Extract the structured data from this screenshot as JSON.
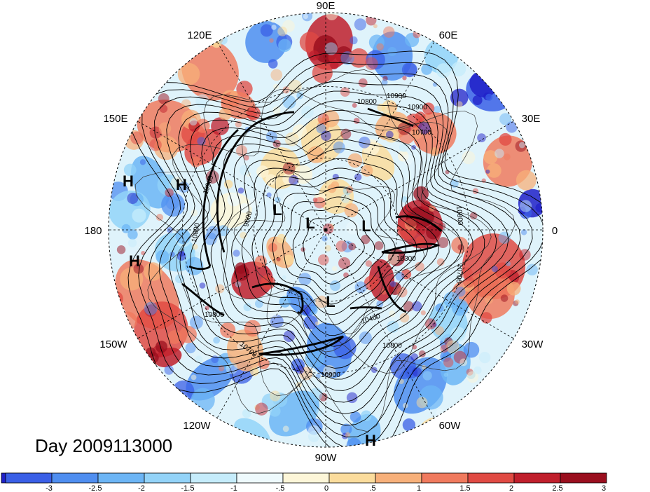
{
  "title": "Day 2009113000",
  "longitude_labels": [
    "90E",
    "60E",
    "30E",
    "0",
    "30W",
    "60W",
    "90W",
    "120W",
    "150W",
    "180",
    "150E",
    "120E"
  ],
  "pressure_centers": [
    {
      "label": "H",
      "name": "high-center"
    },
    {
      "label": "H",
      "name": "high-center"
    },
    {
      "label": "H",
      "name": "high-center"
    },
    {
      "label": "H",
      "name": "high-center"
    },
    {
      "label": "L",
      "name": "low-center"
    },
    {
      "label": "L",
      "name": "low-center"
    },
    {
      "label": "L",
      "name": "low-center"
    },
    {
      "label": "L",
      "name": "low-center"
    }
  ],
  "contour_labels": [
    "10900",
    "10800",
    "10700",
    "10900",
    "10800",
    "10700",
    "10300",
    "10800",
    "10400",
    "10800",
    "10900",
    "10700",
    "10800",
    "10900",
    "9600"
  ],
  "colorbar": {
    "ticks": [
      "-3",
      "-2.5",
      "-2",
      "-1.5",
      "-1",
      "-.5",
      "0",
      ".5",
      "1",
      "1.5",
      "2",
      "2.5",
      "3"
    ],
    "colors": [
      "#2020c8",
      "#3a5fe6",
      "#4f8ef0",
      "#6cb5f5",
      "#93d3f8",
      "#c5ecfb",
      "#eefafd",
      "#fdf6d8",
      "#fbdc9c",
      "#f7b07a",
      "#f07a5e",
      "#e04a43",
      "#c01f2c",
      "#9a0f1e"
    ]
  },
  "colors": {
    "ocean_neutral": "#eefafd",
    "jet_contour": "#000000",
    "grid_line": "#000000"
  }
}
